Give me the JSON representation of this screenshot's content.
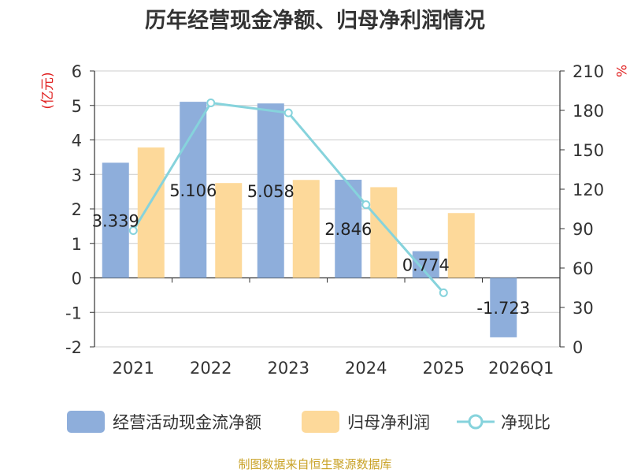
{
  "title": "历年经营现金净额、归母净利润情况",
  "source": "制图数据来自恒生聚源数据库",
  "chart_data": {
    "type": "bar+line",
    "categories": [
      "2021",
      "2022",
      "2023",
      "2024",
      "2025",
      "2026Q1"
    ],
    "series": [
      {
        "name": "经营活动现金流净额",
        "type": "bar",
        "axis": "left",
        "color": "#8eaedb",
        "values": [
          3.339,
          5.106,
          5.058,
          2.846,
          0.774,
          -1.723
        ],
        "labels": [
          "3.339",
          "5.106",
          "5.058",
          "2.846",
          "0.774",
          "-1.723"
        ]
      },
      {
        "name": "归母净利润",
        "type": "bar",
        "axis": "left",
        "color": "#fdd99a",
        "values": [
          3.78,
          2.75,
          2.84,
          2.63,
          1.88,
          null
        ]
      },
      {
        "name": "净现比",
        "type": "line",
        "axis": "right",
        "color": "#86d3dc",
        "values": [
          88.5,
          185.7,
          178.1,
          108.2,
          41.2,
          null
        ]
      }
    ],
    "yleft": {
      "label": "(亿元)",
      "min": -2,
      "max": 6,
      "ticks": [
        -2,
        -1,
        0,
        1,
        2,
        3,
        4,
        5,
        6
      ]
    },
    "yright": {
      "label": "%",
      "min": 0,
      "max": 210,
      "ticks": [
        0,
        30,
        60,
        90,
        120,
        150,
        180,
        210
      ]
    },
    "legend_position": "bottom"
  }
}
